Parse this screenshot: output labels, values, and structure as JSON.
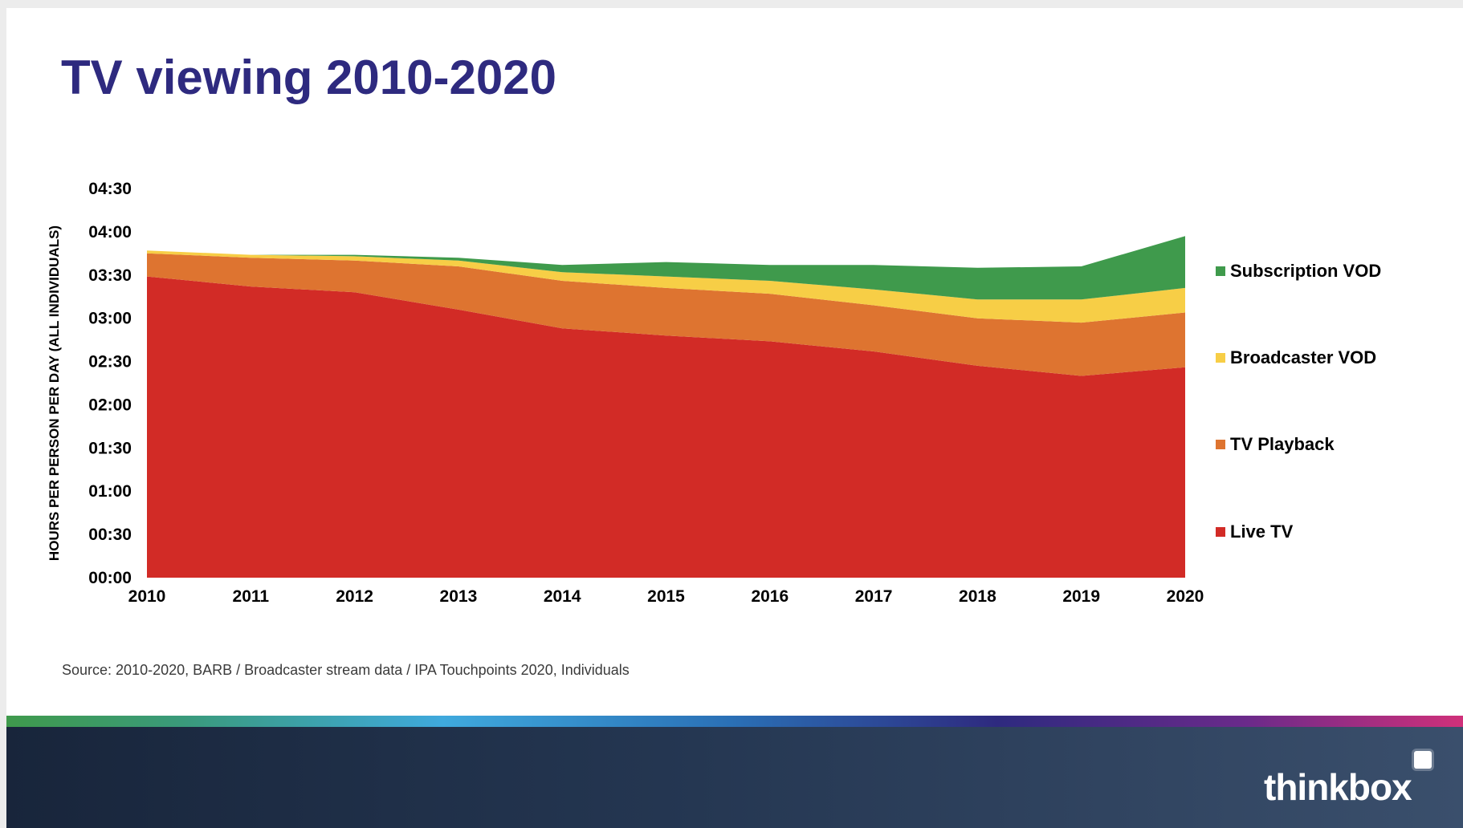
{
  "title": "TV viewing 2010-2020",
  "source": "Source: 2010-2020, BARB / Broadcaster stream data / IPA Touchpoints 2020, Individuals",
  "logo_text": "thinkbox",
  "chart_data": {
    "type": "area",
    "stacked": true,
    "title": "",
    "xlabel": "",
    "ylabel": "HOURS PER PERSON PER DAY (ALL INDIVIDUALS)",
    "x": [
      2010,
      2011,
      2012,
      2013,
      2014,
      2015,
      2016,
      2017,
      2018,
      2019,
      2020
    ],
    "yticks": [
      "00:00",
      "00:30",
      "01:00",
      "01:30",
      "02:00",
      "02:30",
      "03:00",
      "03:30",
      "04:00",
      "04:30"
    ],
    "ylim_minutes": [
      0,
      270
    ],
    "y_unit": "minutes",
    "legend_position": "right",
    "grid": false,
    "series": [
      {
        "name": "Live TV",
        "color": "#d22b26",
        "values": [
          209,
          202,
          198,
          186,
          173,
          168,
          164,
          157,
          147,
          140,
          146
        ]
      },
      {
        "name": "TV Playback",
        "color": "#de7430",
        "values": [
          16,
          20,
          22,
          30,
          33,
          33,
          33,
          32,
          33,
          37,
          38
        ]
      },
      {
        "name": "Broadcaster VOD",
        "color": "#f7ce46",
        "values": [
          2,
          2,
          3,
          4,
          6,
          8,
          9,
          11,
          13,
          16,
          17
        ]
      },
      {
        "name": "Subscription VOD",
        "color": "#3f9a4c",
        "values": [
          0,
          0,
          1,
          2,
          5,
          10,
          11,
          17,
          22,
          23,
          36
        ]
      }
    ],
    "legend_order": [
      "Subscription VOD",
      "Broadcaster VOD",
      "TV Playback",
      "Live TV"
    ]
  }
}
